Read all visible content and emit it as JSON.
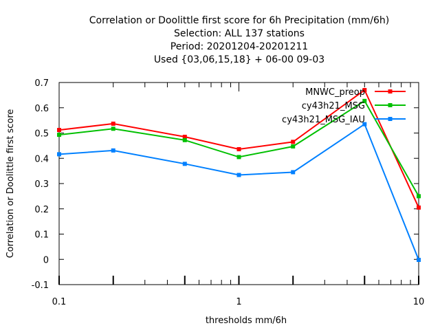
{
  "chart_data": {
    "type": "line",
    "title_lines": [
      "Correlation or Doolittle first score  for 6h Precipitation (mm/6h)",
      "Selection: ALL    137 stations",
      "Period: 20201204-20201211",
      "Used {03,06,15,18} + 06-00 09-03"
    ],
    "xlabel": "thresholds mm/6h",
    "ylabel": "Correlation or Doolittle first score",
    "x_scale": "log",
    "xlim": [
      0.1,
      10
    ],
    "ylim": [
      -0.1,
      0.7
    ],
    "x_ticks": [
      {
        "value": 0.1,
        "label": "0.1"
      },
      {
        "value": 1,
        "label": "1"
      },
      {
        "value": 10,
        "label": "10"
      }
    ],
    "y_ticks": [
      {
        "value": -0.1,
        "label": "-0.1"
      },
      {
        "value": 0,
        "label": "0"
      },
      {
        "value": 0.1,
        "label": "0.1"
      },
      {
        "value": 0.2,
        "label": "0.2"
      },
      {
        "value": 0.3,
        "label": "0.3"
      },
      {
        "value": 0.4,
        "label": "0.4"
      },
      {
        "value": 0.5,
        "label": "0.5"
      },
      {
        "value": 0.6,
        "label": "0.6"
      },
      {
        "value": 0.7,
        "label": "0.7"
      }
    ],
    "x": [
      0.1,
      0.2,
      0.5,
      1,
      2,
      5,
      10
    ],
    "legend_position": "top-right",
    "grid": false,
    "series": [
      {
        "name": "MNWC_preop",
        "color": "#ff0000",
        "values": [
          0.512,
          0.537,
          0.485,
          0.436,
          0.465,
          0.67,
          0.205
        ]
      },
      {
        "name": "cy43h21_MSG",
        "color": "#00c000",
        "values": [
          0.493,
          0.517,
          0.472,
          0.405,
          0.447,
          0.627,
          0.25
        ]
      },
      {
        "name": "cy43h21_MSG_IAU",
        "color": "#0080ff",
        "values": [
          0.416,
          0.431,
          0.378,
          0.334,
          0.345,
          0.535,
          -0.002
        ]
      }
    ]
  }
}
